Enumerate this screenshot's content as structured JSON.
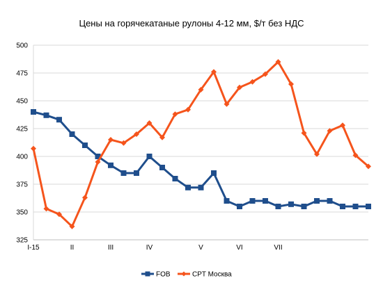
{
  "chart_data": {
    "type": "line",
    "title": "Цены на горячекатаные рулоны 4-12 мм, $/т без НДС",
    "xlabel": "",
    "ylabel": "",
    "ylim": [
      325,
      500
    ],
    "yticks": [
      325,
      350,
      375,
      400,
      425,
      450,
      475,
      500
    ],
    "x_tick_labels": [
      "I-15",
      "II",
      "III",
      "IV",
      "V",
      "VI",
      "VII"
    ],
    "x_tick_label_positions": [
      0,
      3,
      6,
      9,
      13,
      16,
      19
    ],
    "grid": true,
    "legend_position": "bottom",
    "series": [
      {
        "name": "FOB",
        "color": "#1f4e8c",
        "marker": "square",
        "values": [
          440,
          437,
          433,
          420,
          410,
          400,
          392,
          385,
          385,
          400,
          390,
          380,
          372,
          372,
          385,
          360,
          355,
          360,
          360,
          355,
          357,
          355,
          360,
          360,
          355,
          355,
          355
        ]
      },
      {
        "name": "CPT Москва",
        "color": "#f5541c",
        "marker": "diamond",
        "values": [
          407,
          353,
          348,
          337,
          363,
          395,
          415,
          412,
          420,
          430,
          417,
          438,
          442,
          460,
          476,
          447,
          462,
          467,
          474,
          485,
          465,
          421,
          402,
          423,
          428,
          401,
          391
        ]
      }
    ]
  }
}
